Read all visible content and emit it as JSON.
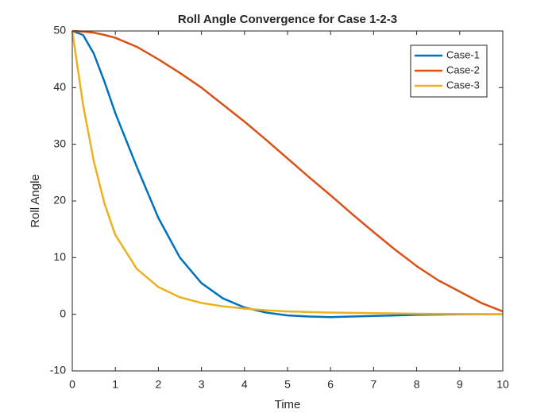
{
  "chart_data": {
    "type": "line",
    "title": "Roll Angle Convergence for Case 1-2-3",
    "x_label": "Time",
    "y_label": "Roll Angle",
    "x": [
      0,
      0.25,
      0.5,
      0.75,
      1,
      1.5,
      2,
      2.5,
      3,
      3.5,
      4,
      4.5,
      5,
      5.5,
      6,
      6.5,
      7,
      7.5,
      8,
      8.5,
      9,
      9.5,
      10
    ],
    "series": [
      {
        "name": "Case-1",
        "color": "#0072BD",
        "values": [
          50,
          49.3,
          46,
          41,
          35.5,
          26,
          17,
          10,
          5.5,
          2.8,
          1.2,
          0.3,
          -0.2,
          -0.4,
          -0.5,
          -0.4,
          -0.3,
          -0.2,
          -0.1,
          -0.05,
          0,
          0,
          0
        ]
      },
      {
        "name": "Case-2",
        "color": "#D95319",
        "values": [
          50,
          49.9,
          49.7,
          49.3,
          48.8,
          47.2,
          45,
          42.6,
          40,
          37,
          34,
          30.8,
          27.5,
          24.2,
          21,
          17.7,
          14.5,
          11.4,
          8.5,
          6,
          4,
          2,
          0.5
        ]
      },
      {
        "name": "Case-3",
        "color": "#EDB120",
        "values": [
          50,
          37,
          27,
          19.5,
          14,
          8,
          4.8,
          3,
          2,
          1.4,
          1,
          0.7,
          0.5,
          0.4,
          0.3,
          0.25,
          0.2,
          0.15,
          0.1,
          0.08,
          0.05,
          0.03,
          0
        ]
      }
    ],
    "xlim": [
      0,
      10
    ],
    "xticks": [
      0,
      1,
      2,
      3,
      4,
      5,
      6,
      7,
      8,
      9,
      10
    ],
    "ylim": [
      -10,
      50
    ],
    "yticks": [
      -10,
      0,
      10,
      20,
      30,
      40,
      50
    ],
    "legend": "top-right",
    "grid": false
  }
}
